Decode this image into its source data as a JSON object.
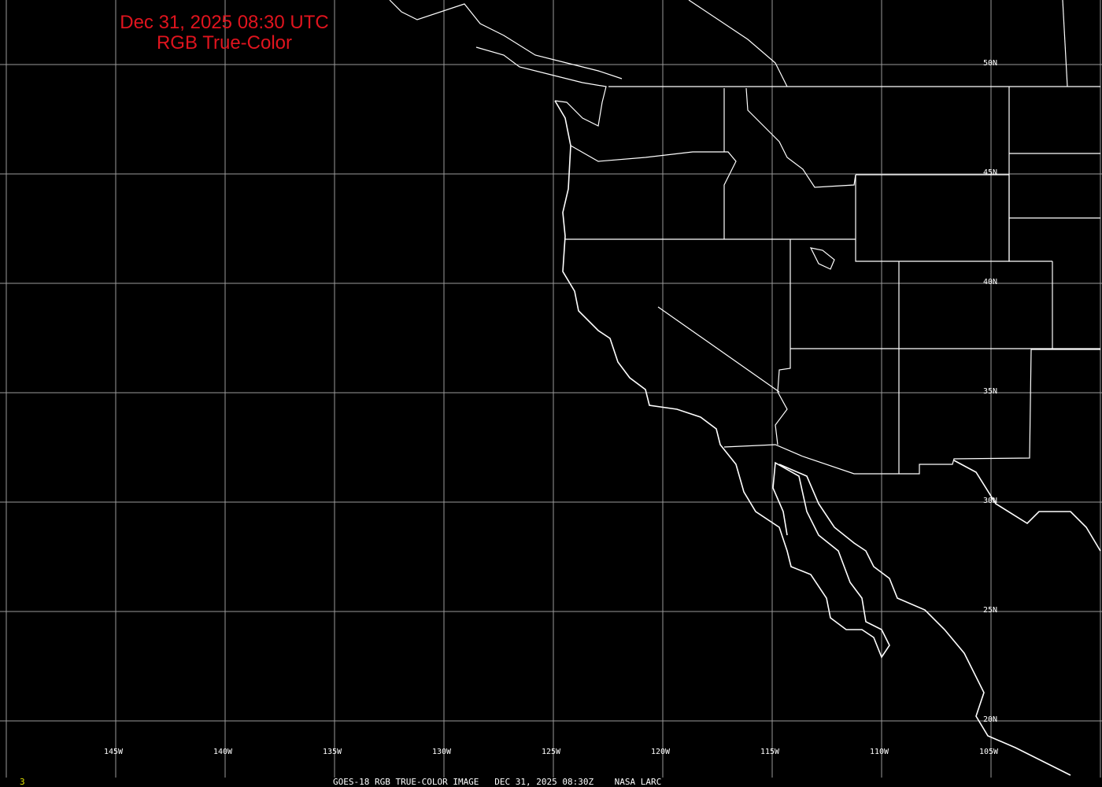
{
  "title": {
    "line1": "Dec 31, 2025 08:30 UTC",
    "line2": "RGB True-Color"
  },
  "latitude_labels": [
    "50N",
    "45N",
    "40N",
    "35N",
    "30N",
    "25N",
    "20N"
  ],
  "longitude_labels": [
    "145W",
    "140W",
    "135W",
    "130W",
    "125W",
    "120W",
    "115W",
    "110W",
    "105W"
  ],
  "footer": {
    "frame_number": "3",
    "caption": "GOES-18 RGB TRUE-COLOR IMAGE   DEC 31, 2025 08:30Z    NASA LARC"
  },
  "colors": {
    "background": "#000000",
    "grid": "#9a9a9a",
    "coastline": "#ffffff",
    "title": "#e0141e",
    "frame_number": "#e6e600"
  }
}
